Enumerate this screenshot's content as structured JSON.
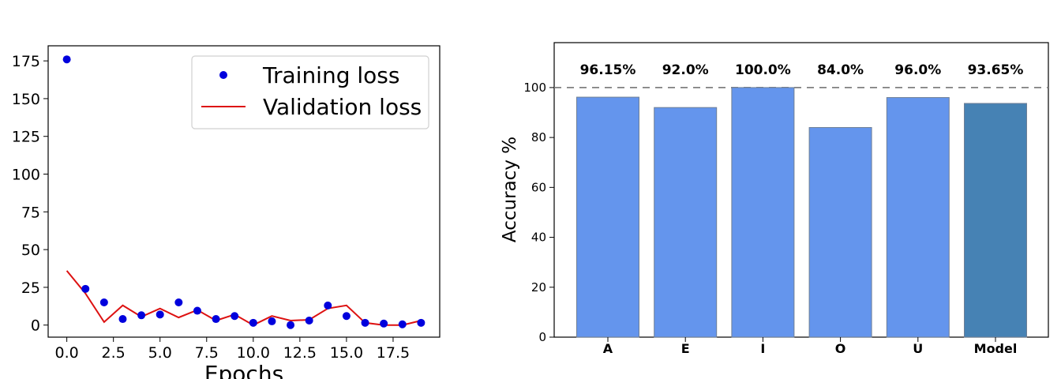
{
  "colors": {
    "training_points": "#0000dd",
    "validation_line": "#dd1111",
    "bar_fill": "#6495ed",
    "model_bar_fill": "#4682b4",
    "reference_line": "#808080"
  },
  "chart_data": [
    {
      "type": "line",
      "xlabel": "Epochs",
      "ylabel": "",
      "xlim": [
        -1,
        20
      ],
      "ylim": [
        -8,
        185
      ],
      "xticks": [
        "0.0",
        "2.5",
        "5.0",
        "7.5",
        "10.0",
        "12.5",
        "15.0",
        "17.5"
      ],
      "xtick_values": [
        0,
        2.5,
        5,
        7.5,
        10,
        12.5,
        15,
        17.5
      ],
      "yticks": [
        "0",
        "25",
        "50",
        "75",
        "100",
        "125",
        "150",
        "175"
      ],
      "ytick_values": [
        0,
        25,
        50,
        75,
        100,
        125,
        150,
        175
      ],
      "legend_position": "top-right",
      "x": [
        0,
        1,
        2,
        3,
        4,
        5,
        6,
        7,
        8,
        9,
        10,
        11,
        12,
        13,
        14,
        15,
        16,
        17,
        18,
        19
      ],
      "series": [
        {
          "name": "Training loss",
          "style": "scatter",
          "values": [
            176,
            24,
            15,
            4,
            6.5,
            7,
            15,
            9.5,
            4,
            6,
            1.5,
            2.5,
            0,
            3,
            13,
            6,
            1.5,
            1,
            0.5,
            1.5
          ]
        },
        {
          "name": "Validation loss",
          "style": "line",
          "values": [
            36,
            21,
            2,
            13,
            5.5,
            11,
            5,
            10,
            3,
            7,
            0,
            6,
            3,
            3.5,
            11,
            13,
            1.5,
            0,
            0,
            3
          ]
        }
      ]
    },
    {
      "type": "bar",
      "ylabel": "Accuracy %",
      "ylim": [
        0,
        118
      ],
      "yticks": [
        "0",
        "20",
        "40",
        "60",
        "80",
        "100"
      ],
      "ytick_values": [
        0,
        20,
        40,
        60,
        80,
        100
      ],
      "reference_line": 100,
      "categories": [
        "A",
        "E",
        "I",
        "O",
        "U",
        "Model"
      ],
      "values": [
        96.15,
        92.0,
        100.0,
        84.0,
        96.0,
        93.65
      ],
      "labels": [
        "96.15%",
        "92.0%",
        "100.0%",
        "84.0%",
        "96.0%",
        "93.65%"
      ]
    }
  ]
}
